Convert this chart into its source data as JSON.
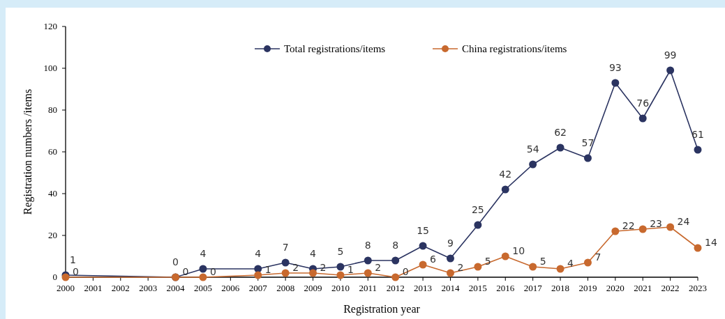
{
  "chart_data": {
    "type": "line",
    "xlabel": "Registration year",
    "ylabel": "Registration numbers /items",
    "x": [
      2000,
      2004,
      2005,
      2007,
      2008,
      2009,
      2010,
      2011,
      2012,
      2013,
      2014,
      2015,
      2016,
      2017,
      2018,
      2019,
      2020,
      2021,
      2022,
      2023
    ],
    "xlim": [
      2000,
      2023
    ],
    "xticks": [
      2000,
      2001,
      2002,
      2003,
      2004,
      2005,
      2006,
      2007,
      2008,
      2009,
      2010,
      2011,
      2012,
      2013,
      2014,
      2015,
      2016,
      2017,
      2018,
      2019,
      2020,
      2021,
      2022,
      2023
    ],
    "ylim": [
      0,
      120
    ],
    "yticks": [
      0,
      20,
      40,
      60,
      80,
      100,
      120
    ],
    "series": [
      {
        "name": "Total registrations/items",
        "color": "#2b3461",
        "values": [
          1,
          0,
          4,
          4,
          7,
          4,
          5,
          8,
          8,
          15,
          9,
          25,
          42,
          54,
          62,
          57,
          93,
          76,
          99,
          61
        ]
      },
      {
        "name": "China registrations/items",
        "color": "#c8692e",
        "values": [
          0,
          0,
          0,
          1,
          2,
          2,
          1,
          2,
          0,
          6,
          2,
          5,
          10,
          5,
          4,
          7,
          22,
          23,
          24,
          14
        ]
      }
    ],
    "data_labels": true,
    "marker": "circle",
    "line_style": "solid",
    "grid": false,
    "legend": "top"
  }
}
